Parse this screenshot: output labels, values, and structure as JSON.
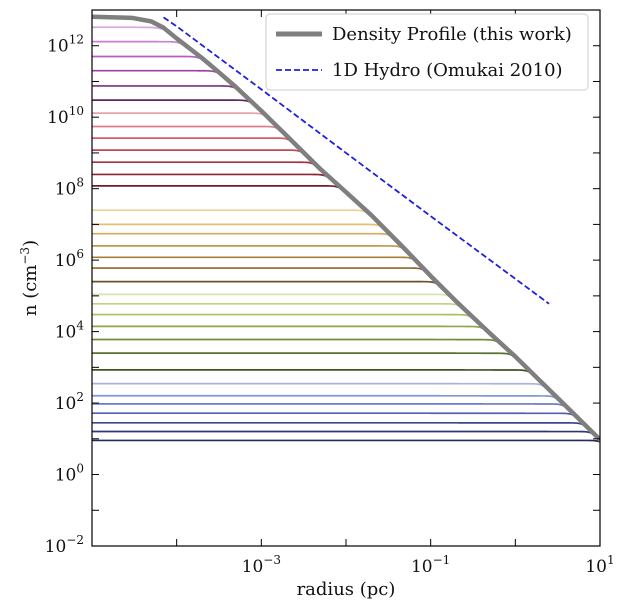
{
  "chart_data": {
    "type": "line",
    "title": "",
    "xlabel": "radius (pc)",
    "ylabel": "n (cm",
    "ylabel_exponent": "−3",
    "ylabel_close": ")",
    "x_scale": "log",
    "y_scale": "log",
    "xlim": [
      1e-05,
      10
    ],
    "ylim": [
      0.01,
      10000000000000
    ],
    "x_ticks": [
      {
        "value": 0.001,
        "base": "10",
        "exp": "−3"
      },
      {
        "value": 0.1,
        "base": "10",
        "exp": "−1"
      },
      {
        "value": 10,
        "base": "10",
        "exp": "1"
      }
    ],
    "y_ticks": [
      {
        "value": 0.01,
        "base": "10",
        "exp": "−2"
      },
      {
        "value": 1,
        "base": "10",
        "exp": "0"
      },
      {
        "value": 100,
        "base": "10",
        "exp": "2"
      },
      {
        "value": 10000,
        "base": "10",
        "exp": "4"
      },
      {
        "value": 1000000,
        "base": "10",
        "exp": "6"
      },
      {
        "value": 100000000,
        "base": "10",
        "exp": "8"
      },
      {
        "value": 10000000000,
        "base": "10",
        "exp": "10"
      },
      {
        "value": 1000000000000,
        "base": "10",
        "exp": "12"
      }
    ],
    "grid": false,
    "legend_position": "top-right",
    "series": [
      {
        "name": "Density Profile (this work)",
        "color": "#7f7f7f",
        "style": "solid",
        "x": [
          1e-05,
          3e-05,
          5e-05,
          7e-05,
          0.0001,
          0.0002,
          0.0003,
          0.0005,
          0.001,
          0.002,
          0.005,
          0.01,
          0.02,
          0.05,
          0.1,
          0.2,
          0.5,
          1,
          2,
          4,
          10
        ],
        "y": [
          6500000000000.0,
          6000000000000.0,
          4800000000000.0,
          3200000000000.0,
          1600000000000.0,
          450000000000.0,
          200000000000.0,
          70000000000.0,
          15000000000.0,
          3000000000.0,
          350000000.0,
          80000000.0,
          18000000.0,
          2000000.0,
          360000.0,
          70000.0,
          9000.0,
          2000.0,
          400.0,
          80.0,
          9.5
        ]
      },
      {
        "name": "1D Hydro (Omukai 2010)",
        "color": "#1f1fe0",
        "style": "dashed",
        "x": [
          7e-05,
          0.0001,
          0.001,
          0.01,
          0.1,
          1,
          2.5
        ],
        "y": [
          6200000000000.0,
          3500000000000.0,
          60000000000.0,
          1000000000.0,
          17000000.0,
          300000.0,
          60000.0
        ]
      }
    ],
    "family_curves": {
      "shape": "Bonnor-Ebert-like core profiles: flat plateau then falloff joining the envelope",
      "x_sample": [
        1e-05,
        10
      ],
      "plateaus": [
        {
          "density": 9.0,
          "color": "#232a5c"
        },
        {
          "density": 16.0,
          "color": "#2e3775"
        },
        {
          "density": 28.0,
          "color": "#3c4692"
        },
        {
          "density": 52.0,
          "color": "#5060b3"
        },
        {
          "density": 95.0,
          "color": "#6a79c9"
        },
        {
          "density": 160.0,
          "color": "#8795d6"
        },
        {
          "density": 350.0,
          "color": "#a9b3e0"
        },
        {
          "density": 850.0,
          "color": "#3e5222"
        },
        {
          "density": 2500.0,
          "color": "#56712e"
        },
        {
          "density": 6000.0,
          "color": "#6e8c3b"
        },
        {
          "density": 14000.0,
          "color": "#8ea74c"
        },
        {
          "density": 30000.0,
          "color": "#a8c163"
        },
        {
          "density": 60000.0,
          "color": "#bdd28a"
        },
        {
          "density": 110000.0,
          "color": "#d4e3b0"
        },
        {
          "density": 250000.0,
          "color": "#6d5226"
        },
        {
          "density": 600000.0,
          "color": "#8c6a2e"
        },
        {
          "density": 1200000.0,
          "color": "#a5803a"
        },
        {
          "density": 2500000.0,
          "color": "#c49846"
        },
        {
          "density": 5500000.0,
          "color": "#dba85a"
        },
        {
          "density": 10000000.0,
          "color": "#e8bd6e"
        },
        {
          "density": 25000000.0,
          "color": "#edd098"
        },
        {
          "density": 120000000.0,
          "color": "#6f1e28"
        },
        {
          "density": 250000000.0,
          "color": "#8a2633"
        },
        {
          "density": 550000000.0,
          "color": "#a53242"
        },
        {
          "density": 1200000000.0,
          "color": "#c04556"
        },
        {
          "density": 2600000000.0,
          "color": "#d25d6d"
        },
        {
          "density": 5500000000.0,
          "color": "#de7f8c"
        },
        {
          "density": 13000000000.0,
          "color": "#e9a3ad"
        },
        {
          "density": 30000000000.0,
          "color": "#5e2560"
        },
        {
          "density": 75000000000.0,
          "color": "#7c3280"
        },
        {
          "density": 200000000000.0,
          "color": "#9d44a2"
        },
        {
          "density": 500000000000.0,
          "color": "#b95cbf"
        },
        {
          "density": 1300000000000.0,
          "color": "#cc7fd2"
        },
        {
          "density": 3300000000000.0,
          "color": "#dba6e0"
        }
      ]
    }
  }
}
